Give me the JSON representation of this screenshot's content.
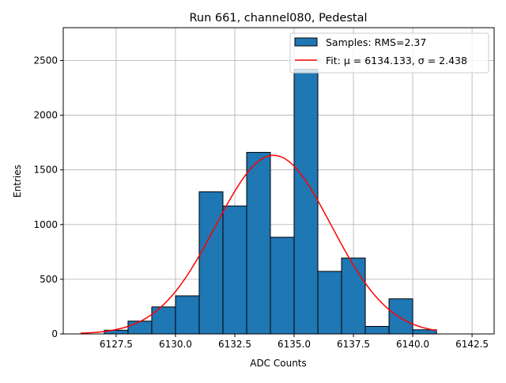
{
  "chart_data": {
    "type": "bar",
    "title": "Run 661, channel080, Pedestal",
    "xlabel": "ADC Counts",
    "ylabel": "Entries",
    "xlim": [
      6125.27,
      6143.43
    ],
    "ylim": [
      0,
      2800
    ],
    "grid": true,
    "legend_placement": "top-right",
    "xticks": [
      6127.5,
      6130.0,
      6132.5,
      6135.0,
      6137.5,
      6140.0,
      6142.5
    ],
    "xtick_labels": [
      "6127.5",
      "6130.0",
      "6132.5",
      "6135.0",
      "6137.5",
      "6140.0",
      "6142.5"
    ],
    "yticks": [
      0,
      500,
      1000,
      1500,
      2000,
      2500
    ],
    "ytick_labels": [
      "0",
      "500",
      "1000",
      "1500",
      "2000",
      "2500"
    ],
    "histogram": {
      "name": "Samples: RMS=2.37",
      "color": "#1f77b4",
      "bin_edges": [
        6127,
        6128,
        6129,
        6130,
        6131,
        6132,
        6133,
        6134,
        6135,
        6136,
        6137,
        6138,
        6139,
        6140,
        6141
      ],
      "values": [
        34,
        117,
        247,
        348,
        1300,
        1170,
        1660,
        884,
        2420,
        572,
        694,
        69,
        321,
        38
      ]
    },
    "fit": {
      "name": "Fit: μ = 6134.133, σ = 2.438",
      "color": "#ff0000",
      "mu": 6134.133,
      "sigma": 2.438,
      "amplitude": 1633,
      "x_range": [
        6126,
        6141
      ]
    }
  }
}
